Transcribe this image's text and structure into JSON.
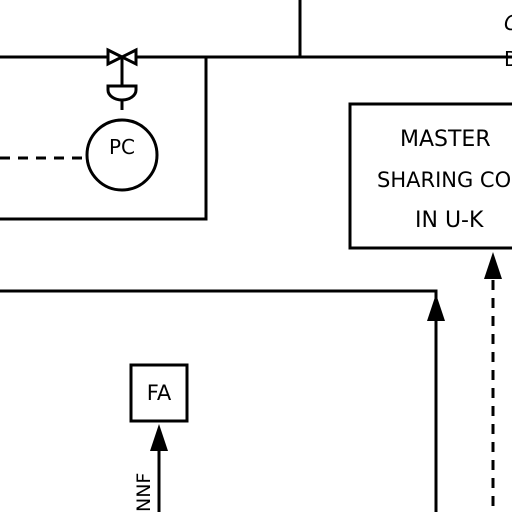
{
  "diagram": {
    "pc_instrument": {
      "tag": "PC"
    },
    "fa_instrument": {
      "tag": "FA"
    },
    "master_box": {
      "line1": "MASTER",
      "line2": "SHARING CON",
      "line3": "IN U-K"
    },
    "vertical_label": "NNF",
    "edge_glyphs": {
      "top_right": "C",
      "right": "D"
    }
  }
}
